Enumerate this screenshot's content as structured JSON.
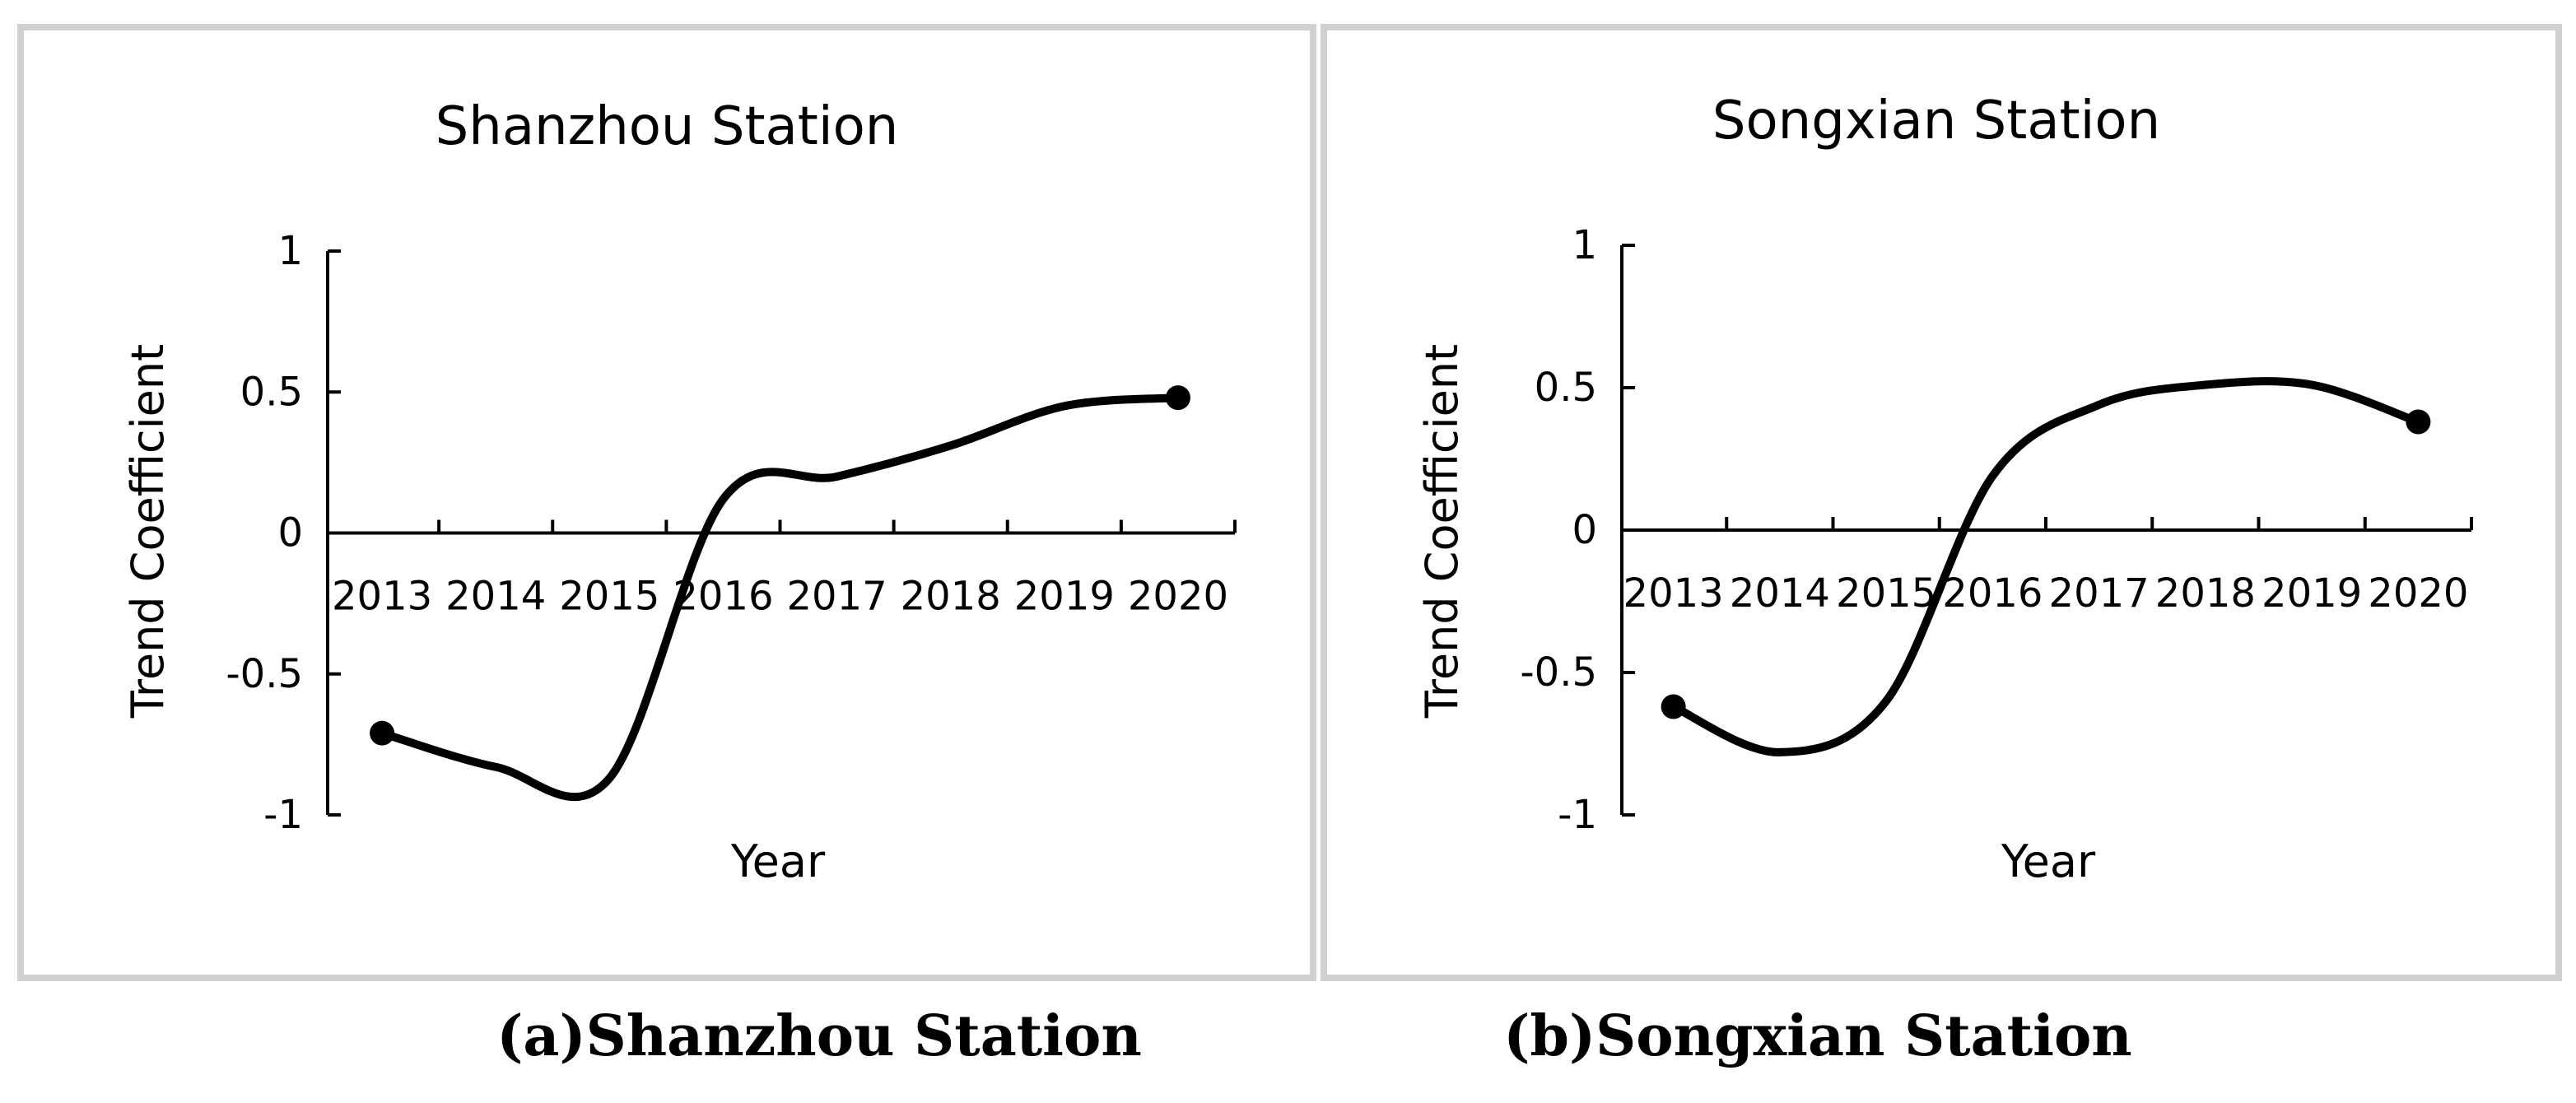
{
  "chart_data": [
    {
      "type": "line",
      "title": "Shanzhou Station",
      "xlabel": "Year",
      "ylabel": "Trend Coefficient",
      "categories": [
        "2013",
        "2014",
        "2015",
        "2016",
        "2017",
        "2018",
        "2019",
        "2020"
      ],
      "yticks": [
        "1",
        "0.5",
        "0",
        "-0.5",
        "-1"
      ],
      "ylim": [
        -1,
        1
      ],
      "series": [
        {
          "values": [
            -0.71,
            -0.83,
            -0.87,
            0.12,
            0.2,
            0.31,
            0.45,
            0.48
          ]
        }
      ],
      "caption": "(a)Shanzhou Station"
    },
    {
      "type": "line",
      "title": "Songxian Station",
      "xlabel": "Year",
      "ylabel": "Trend Coefficient",
      "categories": [
        "2013",
        "2014",
        "2015",
        "2016",
        "2017",
        "2018",
        "2019",
        "2020"
      ],
      "yticks": [
        "1",
        "0.5",
        "0",
        "-0.5",
        "-1"
      ],
      "ylim": [
        -1,
        1
      ],
      "series": [
        {
          "values": [
            -0.62,
            -0.78,
            -0.6,
            0.19,
            0.44,
            0.51,
            0.51,
            0.38
          ]
        }
      ],
      "caption": "(b)Songxian Station"
    }
  ],
  "style": {
    "line_color": "#000000",
    "panel_border": "#d0d0d0"
  }
}
